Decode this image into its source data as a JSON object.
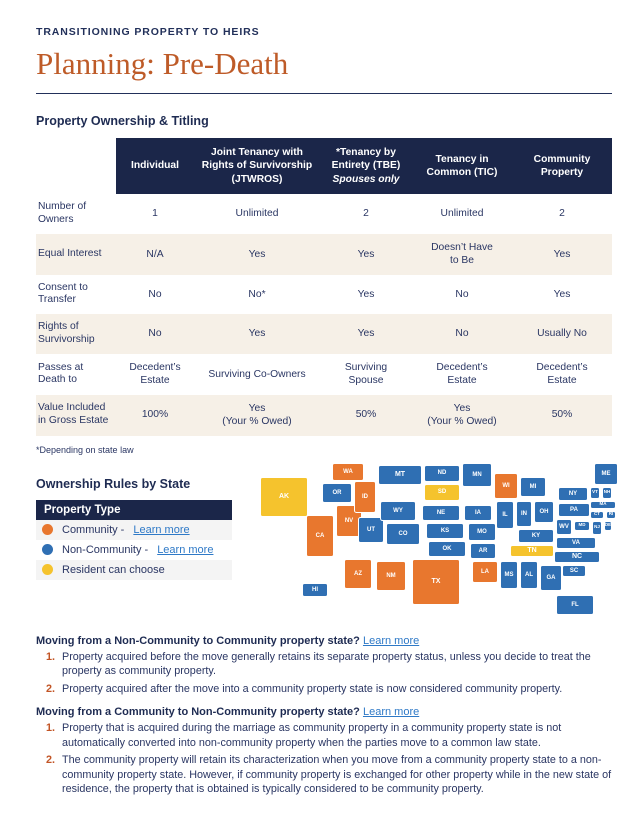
{
  "header": {
    "eyebrow": "TRANSITIONING PROPERTY TO HEIRS",
    "title": "Planning: Pre-Death"
  },
  "table": {
    "heading": "Property Ownership & Titling",
    "columns": [
      {
        "label": "Individual",
        "sublabel": ""
      },
      {
        "label": "Joint Tenancy with Rights of Survivorship (JTWROS)",
        "sublabel": ""
      },
      {
        "label": "*Tenancy by Entirety (TBE)",
        "sublabel": "Spouses only"
      },
      {
        "label": "Tenancy in Common (TIC)",
        "sublabel": ""
      },
      {
        "label": "Community Property",
        "sublabel": ""
      }
    ],
    "rows": [
      {
        "label": "Number of Owners",
        "values": [
          "1",
          "Unlimited",
          "2",
          "Unlimited",
          "2"
        ]
      },
      {
        "label": "Equal Interest",
        "values": [
          "N/A",
          "Yes",
          "Yes",
          "Doesn’t Have\nto Be",
          "Yes"
        ]
      },
      {
        "label": "Consent to Transfer",
        "values": [
          "No",
          "No*",
          "Yes",
          "No",
          "Yes"
        ]
      },
      {
        "label": "Rights of Survivorship",
        "values": [
          "No",
          "Yes",
          "Yes",
          "No",
          "Usually No"
        ]
      },
      {
        "label": "Passes at Death to",
        "values": [
          "Decedent’s\nEstate",
          "Surviving Co-Owners",
          "Surviving\nSpouse",
          "Decedent’s\nEstate",
          "Decedent’s\nEstate"
        ]
      },
      {
        "label": "Value Included in Gross Estate",
        "values": [
          "100%",
          "Yes\n(Your % Owed)",
          "50%",
          "Yes\n(Your % Owed)",
          "50%"
        ]
      }
    ],
    "footnote": "*Depending on state law"
  },
  "map": {
    "heading": "Ownership Rules by State",
    "legend_title": "Property Type",
    "legend": [
      {
        "label": "Community - ",
        "link": "Learn more",
        "type": "community"
      },
      {
        "label": "Non-Community - ",
        "link": "Learn more",
        "type": "non_community"
      },
      {
        "label": "Resident can choose",
        "link": "",
        "type": "choose"
      }
    ],
    "colors": {
      "community": "#E8772E",
      "non_community": "#2F6FB3",
      "choose": "#F5C32D"
    },
    "states": [
      {
        "abbr": "AK",
        "type": "choose"
      },
      {
        "abbr": "WA",
        "type": "community"
      },
      {
        "abbr": "OR",
        "type": "non_community"
      },
      {
        "abbr": "CA",
        "type": "community"
      },
      {
        "abbr": "NV",
        "type": "community"
      },
      {
        "abbr": "ID",
        "type": "community"
      },
      {
        "abbr": "UT",
        "type": "non_community"
      },
      {
        "abbr": "AZ",
        "type": "community"
      },
      {
        "abbr": "MT",
        "type": "non_community"
      },
      {
        "abbr": "WY",
        "type": "non_community"
      },
      {
        "abbr": "CO",
        "type": "non_community"
      },
      {
        "abbr": "NM",
        "type": "community"
      },
      {
        "abbr": "ND",
        "type": "non_community"
      },
      {
        "abbr": "SD",
        "type": "choose"
      },
      {
        "abbr": "NE",
        "type": "non_community"
      },
      {
        "abbr": "KS",
        "type": "non_community"
      },
      {
        "abbr": "OK",
        "type": "non_community"
      },
      {
        "abbr": "TX",
        "type": "community"
      },
      {
        "abbr": "MN",
        "type": "non_community"
      },
      {
        "abbr": "IA",
        "type": "non_community"
      },
      {
        "abbr": "MO",
        "type": "non_community"
      },
      {
        "abbr": "AR",
        "type": "non_community"
      },
      {
        "abbr": "LA",
        "type": "community"
      },
      {
        "abbr": "WI",
        "type": "community"
      },
      {
        "abbr": "IL",
        "type": "non_community"
      },
      {
        "abbr": "MS",
        "type": "non_community"
      },
      {
        "abbr": "MI",
        "type": "non_community"
      },
      {
        "abbr": "IN",
        "type": "non_community"
      },
      {
        "abbr": "OH",
        "type": "non_community"
      },
      {
        "abbr": "KY",
        "type": "non_community"
      },
      {
        "abbr": "TN",
        "type": "choose"
      },
      {
        "abbr": "AL",
        "type": "non_community"
      },
      {
        "abbr": "GA",
        "type": "non_community"
      },
      {
        "abbr": "FL",
        "type": "non_community"
      },
      {
        "abbr": "WV",
        "type": "non_community"
      },
      {
        "abbr": "VA",
        "type": "non_community"
      },
      {
        "abbr": "NC",
        "type": "non_community"
      },
      {
        "abbr": "SC",
        "type": "non_community"
      },
      {
        "abbr": "PA",
        "type": "non_community"
      },
      {
        "abbr": "NY",
        "type": "non_community"
      },
      {
        "abbr": "VT",
        "type": "non_community"
      },
      {
        "abbr": "NH",
        "type": "non_community"
      },
      {
        "abbr": "ME",
        "type": "non_community"
      },
      {
        "abbr": "MA",
        "type": "non_community"
      },
      {
        "abbr": "CT",
        "type": "non_community"
      },
      {
        "abbr": "RI",
        "type": "non_community"
      },
      {
        "abbr": "NJ",
        "type": "non_community"
      },
      {
        "abbr": "DE",
        "type": "non_community"
      },
      {
        "abbr": "MD",
        "type": "non_community"
      },
      {
        "abbr": "HI",
        "type": "non_community"
      }
    ]
  },
  "sections": [
    {
      "heading": "Moving from a Non-Community to Community property state?",
      "link": "Learn more",
      "items": [
        "Property acquired before the move generally retains its separate property status, unless you decide to treat the property as community property.",
        "Property acquired after the move into a community property state is now considered community property."
      ]
    },
    {
      "heading": "Moving from a Community to Non-Community property state?",
      "link": "Learn more",
      "items": [
        "Property that is acquired during the marriage as community property in a community property state is not automatically converted into non-community property when the parties move to a common law state.",
        "The community property will retain its characterization when you move from a community property state to a non- community property state. However, if community property is exchanged for other property while in the new state of residence, the property that is obtained is typically considered to be community property."
      ]
    }
  ]
}
